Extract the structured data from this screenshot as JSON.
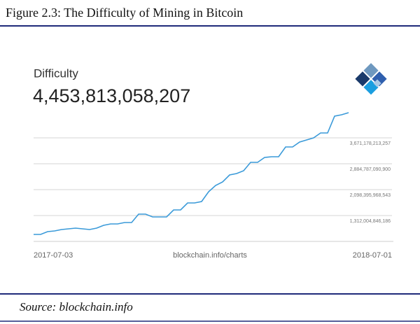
{
  "figure_title": "Figure 2.3: The Difficulty of Mining in Bitcoin",
  "source": "Source: blockchain.info",
  "chart_data": {
    "type": "line",
    "title": "Difficulty",
    "headline_value": "4,453,813,058,207",
    "x_start_label": "2017-07-03",
    "x_end_label": "2018-07-01",
    "watermark": "blockchain.info/charts",
    "color": "#3a9ad9",
    "values": [
      738000000000,
      738000000000,
      823000000000,
      844000000000,
      887000000000,
      908000000000,
      929000000000,
      908000000000,
      887000000000,
      929000000000,
      1014000000000,
      1057000000000,
      1057000000000,
      1100000000000,
      1100000000000,
      1355000000000,
      1355000000000,
      1270000000000,
      1270000000000,
      1270000000000,
      1482000000000,
      1482000000000,
      1695000000000,
      1695000000000,
      1737000000000,
      2035000000000,
      2226000000000,
      2332000000000,
      2545000000000,
      2587000000000,
      2672000000000,
      2927000000000,
      2927000000000,
      3076000000000,
      3097000000000,
      3097000000000,
      3395000000000,
      3395000000000,
      3544000000000,
      3607000000000,
      3671000000000,
      3820000000000,
      3820000000000,
      4330000000000,
      4373000000000,
      4436000000000
    ],
    "ylim": [
      525613723829,
      4457569335614
    ],
    "yticks": [
      {
        "value": 1312004846186,
        "label": "1,312,004,846,186"
      },
      {
        "value": 2098395968543,
        "label": "2,098,395,968,543"
      },
      {
        "value": 2884787090900,
        "label": "2,884,787,090,900"
      },
      {
        "value": 3671178213257,
        "label": "3,671,178,213,257"
      }
    ],
    "grid": true
  }
}
